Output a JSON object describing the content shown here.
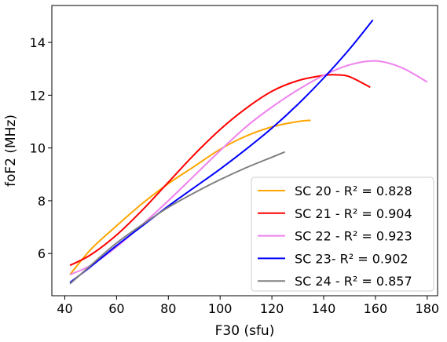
{
  "chart_data": {
    "type": "line",
    "xlabel": "F30 (sfu)",
    "ylabel": "foF2 (MHz)",
    "xlim": [
      35,
      184
    ],
    "ylim": [
      4.4,
      15.4
    ],
    "xticks": [
      40,
      60,
      80,
      100,
      120,
      140,
      160,
      180
    ],
    "yticks": [
      6,
      8,
      10,
      12,
      14
    ],
    "grid": false,
    "legend_position": "lower-right",
    "series": [
      {
        "name": "SC 20 - R² = 0.828",
        "color": "#ffa500",
        "x": [
          42,
          50,
          60,
          70,
          80,
          90,
          100,
          110,
          120,
          130,
          135
        ],
        "y": [
          5.2,
          6.15,
          7.05,
          7.9,
          8.65,
          9.3,
          9.95,
          10.45,
          10.8,
          11.0,
          11.05
        ]
      },
      {
        "name": "SC 21 - R² = 0.904",
        "color": "#ff0000",
        "x": [
          42,
          50,
          60,
          70,
          80,
          90,
          100,
          110,
          120,
          130,
          140,
          145,
          150,
          158
        ],
        "y": [
          5.55,
          5.95,
          6.7,
          7.65,
          8.7,
          9.75,
          10.7,
          11.5,
          12.15,
          12.55,
          12.75,
          12.77,
          12.7,
          12.3
        ]
      },
      {
        "name": "SC 22 - R² = 0.923",
        "color": "#ee82ee",
        "x": [
          42,
          50,
          60,
          70,
          80,
          90,
          100,
          110,
          120,
          130,
          140,
          150,
          160,
          170,
          180
        ],
        "y": [
          5.2,
          5.55,
          6.25,
          7.1,
          8.0,
          8.95,
          9.9,
          10.8,
          11.55,
          12.2,
          12.75,
          13.15,
          13.3,
          13.05,
          12.5
        ]
      },
      {
        "name": "SC 23- R² = 0.902",
        "color": "#0000ff",
        "x": [
          42,
          50,
          60,
          70,
          80,
          90,
          100,
          110,
          120,
          130,
          140,
          150,
          159
        ],
        "y": [
          4.9,
          5.5,
          6.3,
          7.05,
          7.8,
          8.5,
          9.2,
          9.95,
          10.75,
          11.65,
          12.65,
          13.75,
          14.85
        ]
      },
      {
        "name": "SC 24 - R² = 0.857",
        "color": "#808080",
        "x": [
          42,
          50,
          60,
          70,
          80,
          90,
          100,
          110,
          120,
          125
        ],
        "y": [
          4.85,
          5.55,
          6.4,
          7.1,
          7.75,
          8.3,
          8.8,
          9.25,
          9.65,
          9.85
        ]
      }
    ]
  }
}
